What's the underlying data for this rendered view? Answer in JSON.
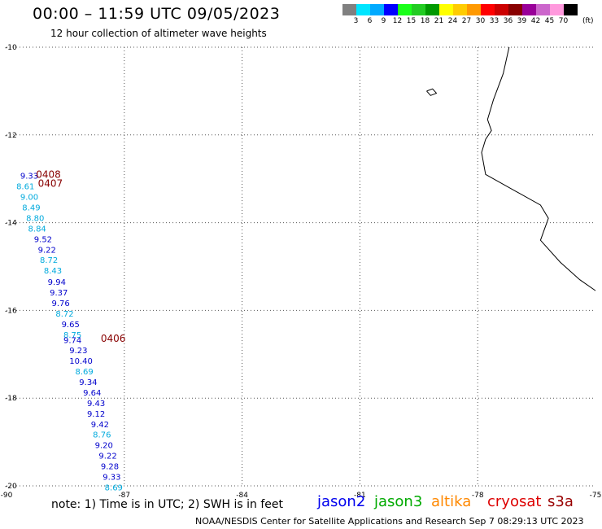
{
  "header": {
    "title": "00:00 – 11:59 UTC 09/05/2023",
    "subtitle": "12 hour collection of altimeter wave heights"
  },
  "color_scale": {
    "colors": [
      "#808080",
      "#00e5ff",
      "#00aaff",
      "#0000ff",
      "#1aff1a",
      "#22cc22",
      "#009900",
      "#ffff00",
      "#ffcc00",
      "#ff9900",
      "#ff0000",
      "#cc0000",
      "#880000",
      "#990099",
      "#cc66cc",
      "#ff99dd",
      "#000000"
    ],
    "labels": [
      "3",
      "6",
      "9",
      "12",
      "15",
      "18",
      "21",
      "24",
      "27",
      "30",
      "33",
      "36",
      "39",
      "42",
      "45",
      "70"
    ],
    "unit": "(ft)"
  },
  "map": {
    "lon_range": [
      -90,
      -75
    ],
    "lat_range": [
      -20,
      -10
    ],
    "lon_ticks": [
      "-90",
      "-87",
      "-84",
      "-81",
      "-78",
      "-75"
    ],
    "lat_ticks": [
      "-10",
      "-12",
      "-14",
      "-16",
      "-18",
      "-20"
    ],
    "grid": true,
    "coast": [
      [
        -77.2,
        -10.0
      ],
      [
        -77.35,
        -10.6
      ],
      [
        -77.6,
        -11.2
      ],
      [
        -77.75,
        -11.65
      ],
      [
        -77.65,
        -11.9
      ],
      [
        -77.8,
        -12.1
      ],
      [
        -77.9,
        -12.4
      ],
      [
        -77.8,
        -12.9
      ],
      [
        -76.4,
        -13.6
      ],
      [
        -76.2,
        -13.9
      ],
      [
        -76.4,
        -14.4
      ],
      [
        -75.9,
        -14.9
      ],
      [
        -75.4,
        -15.3
      ],
      [
        -75.0,
        -15.55
      ]
    ],
    "island": [
      [
        -79.3,
        -11.0
      ],
      [
        -79.15,
        -10.95
      ],
      [
        -79.05,
        -11.05
      ],
      [
        -79.2,
        -11.1
      ],
      [
        -79.3,
        -11.0
      ]
    ]
  },
  "observations": [
    {
      "lon": -89.65,
      "lat": -13.0,
      "v": "9.33",
      "c": "#0000cc"
    },
    {
      "lon": -89.75,
      "lat": -13.24,
      "v": "8.61",
      "c": "#00aadd"
    },
    {
      "lon": -89.65,
      "lat": -13.48,
      "v": "9.00",
      "c": "#00aadd"
    },
    {
      "lon": -89.6,
      "lat": -13.72,
      "v": "8.49",
      "c": "#00aadd"
    },
    {
      "lon": -89.5,
      "lat": -13.96,
      "v": "8.80",
      "c": "#00aadd"
    },
    {
      "lon": -89.45,
      "lat": -14.2,
      "v": "8.84",
      "c": "#00aadd"
    },
    {
      "lon": -89.3,
      "lat": -14.44,
      "v": "9.52",
      "c": "#0000cc"
    },
    {
      "lon": -89.2,
      "lat": -14.68,
      "v": "9.22",
      "c": "#0000cc"
    },
    {
      "lon": -89.15,
      "lat": -14.92,
      "v": "8.72",
      "c": "#00aadd"
    },
    {
      "lon": -89.05,
      "lat": -15.16,
      "v": "8.43",
      "c": "#00aadd"
    },
    {
      "lon": -88.95,
      "lat": -15.42,
      "v": "9.94",
      "c": "#0000cc"
    },
    {
      "lon": -88.9,
      "lat": -15.66,
      "v": "9.37",
      "c": "#0000cc"
    },
    {
      "lon": -88.85,
      "lat": -15.9,
      "v": "9.76",
      "c": "#0000cc"
    },
    {
      "lon": -88.75,
      "lat": -16.14,
      "v": "8.72",
      "c": "#00aadd"
    },
    {
      "lon": -88.6,
      "lat": -16.38,
      "v": "9.65",
      "c": "#0000cc"
    },
    {
      "lon": -88.55,
      "lat": -16.62,
      "v": "8.75",
      "c": "#00aadd"
    },
    {
      "lon": -88.55,
      "lat": -16.74,
      "v": "9.74",
      "c": "#0000cc"
    },
    {
      "lon": -88.4,
      "lat": -16.98,
      "v": "9.23",
      "c": "#0000cc"
    },
    {
      "lon": -88.4,
      "lat": -17.22,
      "v": "10.40",
      "c": "#0000cc"
    },
    {
      "lon": -88.25,
      "lat": -17.46,
      "v": "8.69",
      "c": "#00aadd"
    },
    {
      "lon": -88.15,
      "lat": -17.7,
      "v": "9.34",
      "c": "#0000cc"
    },
    {
      "lon": -88.05,
      "lat": -17.94,
      "v": "9.64",
      "c": "#0000cc"
    },
    {
      "lon": -87.95,
      "lat": -18.18,
      "v": "9.43",
      "c": "#0000cc"
    },
    {
      "lon": -87.95,
      "lat": -18.42,
      "v": "9.12",
      "c": "#0000cc"
    },
    {
      "lon": -87.85,
      "lat": -18.66,
      "v": "9.42",
      "c": "#0000cc"
    },
    {
      "lon": -87.8,
      "lat": -18.9,
      "v": "8.76",
      "c": "#00aadd"
    },
    {
      "lon": -87.75,
      "lat": -19.14,
      "v": "9.20",
      "c": "#0000cc"
    },
    {
      "lon": -87.65,
      "lat": -19.38,
      "v": "9.22",
      "c": "#0000cc"
    },
    {
      "lon": -87.6,
      "lat": -19.62,
      "v": "9.28",
      "c": "#0000cc"
    },
    {
      "lon": -87.55,
      "lat": -19.86,
      "v": "9.33",
      "c": "#0000cc"
    },
    {
      "lon": -87.5,
      "lat": -20.1,
      "v": "8.69",
      "c": "#00aadd"
    }
  ],
  "time_labels": [
    {
      "lon": -89.25,
      "lat": -12.98,
      "t": "0408"
    },
    {
      "lon": -89.2,
      "lat": -13.18,
      "t": "0407"
    },
    {
      "lon": -87.6,
      "lat": -16.72,
      "t": "0406"
    }
  ],
  "note": "note: 1) Time is in UTC; 2) SWH is in feet",
  "legend": [
    {
      "name": "jason2",
      "color": "#0000ee"
    },
    {
      "name": "jason3",
      "color": "#00aa00"
    },
    {
      "name": "altika",
      "color": "#ff8800"
    },
    {
      "name": "cryosat",
      "color": "#dd0000"
    },
    {
      "name": "s3a",
      "color": "#990000"
    }
  ],
  "footer": "NOAA/NESDIS Center for Satellite Applications and Research   Sep  7 08:29:13 UTC 2023"
}
